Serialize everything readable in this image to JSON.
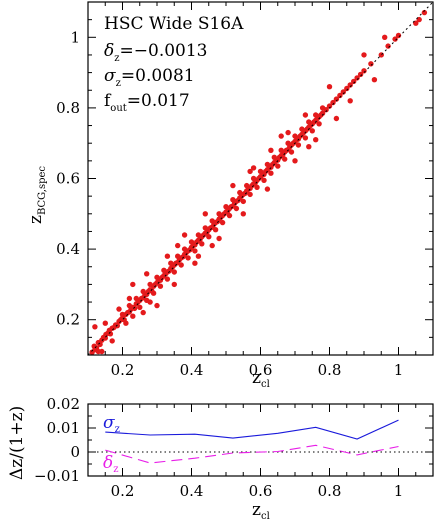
{
  "chart_data": [
    {
      "type": "scatter",
      "id": "main",
      "xlim": [
        0.1,
        1.1
      ],
      "ylim": [
        0.1,
        1.1
      ],
      "xticks": [
        "0.2",
        "0.4",
        "0.6",
        "0.8",
        "1"
      ],
      "yticks": [
        "0.2",
        "0.4",
        "0.6",
        "0.8",
        "1"
      ],
      "xtick_values": [
        0.2,
        0.4,
        0.6,
        0.8,
        1.0
      ],
      "ytick_values": [
        0.2,
        0.4,
        0.6,
        0.8,
        1.0
      ],
      "xlabel_main": "z",
      "xlabel_sub": "cl",
      "ylabel_main": "z",
      "ylabel_sub": "BCG,spec",
      "point_color": "#e41a1c",
      "reference_line": "y = x, dotted",
      "annotations": {
        "survey": "HSC Wide S16A",
        "delta_sym": "δ",
        "delta_sub": "z",
        "delta_val": "=−0.0013",
        "sigma_sym": "σ",
        "sigma_sub": "z",
        "sigma_val": "=0.0081",
        "fout_sym": "f",
        "fout_sub": "out",
        "fout_val": "=0.017"
      },
      "points": [
        [
          0.112,
          0.108
        ],
        [
          0.118,
          0.125
        ],
        [
          0.125,
          0.12
        ],
        [
          0.13,
          0.135
        ],
        [
          0.135,
          0.13
        ],
        [
          0.14,
          0.142
        ],
        [
          0.145,
          0.15
        ],
        [
          0.15,
          0.148
        ],
        [
          0.152,
          0.158
        ],
        [
          0.158,
          0.162
        ],
        [
          0.162,
          0.17
        ],
        [
          0.165,
          0.16
        ],
        [
          0.17,
          0.176
        ],
        [
          0.175,
          0.178
        ],
        [
          0.18,
          0.185
        ],
        [
          0.185,
          0.183
        ],
        [
          0.19,
          0.195
        ],
        [
          0.195,
          0.2
        ],
        [
          0.2,
          0.205
        ],
        [
          0.205,
          0.2
        ],
        [
          0.21,
          0.215
        ],
        [
          0.215,
          0.22
        ],
        [
          0.22,
          0.222
        ],
        [
          0.225,
          0.23
        ],
        [
          0.23,
          0.235
        ],
        [
          0.235,
          0.232
        ],
        [
          0.24,
          0.245
        ],
        [
          0.245,
          0.25
        ],
        [
          0.25,
          0.255
        ],
        [
          0.255,
          0.26
        ],
        [
          0.26,
          0.262
        ],
        [
          0.265,
          0.27
        ],
        [
          0.27,
          0.272
        ],
        [
          0.275,
          0.28
        ],
        [
          0.28,
          0.285
        ],
        [
          0.285,
          0.282
        ],
        [
          0.29,
          0.295
        ],
        [
          0.295,
          0.3
        ],
        [
          0.3,
          0.305
        ],
        [
          0.305,
          0.31
        ],
        [
          0.31,
          0.312
        ],
        [
          0.315,
          0.32
        ],
        [
          0.32,
          0.325
        ],
        [
          0.325,
          0.33
        ],
        [
          0.33,
          0.335
        ],
        [
          0.335,
          0.338
        ],
        [
          0.34,
          0.345
        ],
        [
          0.345,
          0.35
        ],
        [
          0.35,
          0.355
        ],
        [
          0.355,
          0.36
        ],
        [
          0.36,
          0.362
        ],
        [
          0.365,
          0.37
        ],
        [
          0.37,
          0.375
        ],
        [
          0.375,
          0.378
        ],
        [
          0.38,
          0.385
        ],
        [
          0.385,
          0.39
        ],
        [
          0.39,
          0.395
        ],
        [
          0.395,
          0.398
        ],
        [
          0.4,
          0.405
        ],
        [
          0.405,
          0.41
        ],
        [
          0.41,
          0.412
        ],
        [
          0.415,
          0.42
        ],
        [
          0.42,
          0.425
        ],
        [
          0.425,
          0.428
        ],
        [
          0.43,
          0.435
        ],
        [
          0.435,
          0.44
        ],
        [
          0.44,
          0.445
        ],
        [
          0.445,
          0.448
        ],
        [
          0.45,
          0.455
        ],
        [
          0.455,
          0.46
        ],
        [
          0.46,
          0.462
        ],
        [
          0.465,
          0.47
        ],
        [
          0.47,
          0.475
        ],
        [
          0.475,
          0.478
        ],
        [
          0.48,
          0.485
        ],
        [
          0.485,
          0.49
        ],
        [
          0.49,
          0.495
        ],
        [
          0.495,
          0.5
        ],
        [
          0.5,
          0.505
        ],
        [
          0.505,
          0.508
        ],
        [
          0.51,
          0.515
        ],
        [
          0.515,
          0.52
        ],
        [
          0.52,
          0.522
        ],
        [
          0.525,
          0.53
        ],
        [
          0.53,
          0.535
        ],
        [
          0.535,
          0.538
        ],
        [
          0.54,
          0.545
        ],
        [
          0.545,
          0.55
        ],
        [
          0.55,
          0.555
        ],
        [
          0.555,
          0.558
        ],
        [
          0.56,
          0.565
        ],
        [
          0.565,
          0.57
        ],
        [
          0.57,
          0.572
        ],
        [
          0.575,
          0.58
        ],
        [
          0.58,
          0.585
        ],
        [
          0.585,
          0.588
        ],
        [
          0.59,
          0.595
        ],
        [
          0.595,
          0.6
        ],
        [
          0.6,
          0.605
        ],
        [
          0.605,
          0.61
        ],
        [
          0.61,
          0.612
        ],
        [
          0.615,
          0.62
        ],
        [
          0.62,
          0.625
        ],
        [
          0.625,
          0.63
        ],
        [
          0.63,
          0.632
        ],
        [
          0.635,
          0.64
        ],
        [
          0.64,
          0.645
        ],
        [
          0.645,
          0.65
        ],
        [
          0.65,
          0.652
        ],
        [
          0.655,
          0.66
        ],
        [
          0.66,
          0.665
        ],
        [
          0.665,
          0.668
        ],
        [
          0.67,
          0.675
        ],
        [
          0.675,
          0.68
        ],
        [
          0.68,
          0.682
        ],
        [
          0.685,
          0.69
        ],
        [
          0.69,
          0.695
        ],
        [
          0.695,
          0.7
        ],
        [
          0.7,
          0.705
        ],
        [
          0.705,
          0.71
        ],
        [
          0.71,
          0.712
        ],
        [
          0.715,
          0.72
        ],
        [
          0.72,
          0.725
        ],
        [
          0.725,
          0.73
        ],
        [
          0.73,
          0.735
        ],
        [
          0.735,
          0.74
        ],
        [
          0.74,
          0.745
        ],
        [
          0.745,
          0.75
        ],
        [
          0.75,
          0.755
        ],
        [
          0.755,
          0.76
        ],
        [
          0.76,
          0.765
        ],
        [
          0.765,
          0.77
        ],
        [
          0.77,
          0.775
        ],
        [
          0.775,
          0.78
        ],
        [
          0.78,
          0.785
        ],
        [
          0.79,
          0.795
        ],
        [
          0.8,
          0.805
        ],
        [
          0.81,
          0.815
        ],
        [
          0.82,
          0.825
        ],
        [
          0.83,
          0.835
        ],
        [
          0.84,
          0.845
        ],
        [
          0.85,
          0.855
        ],
        [
          0.86,
          0.865
        ],
        [
          0.87,
          0.875
        ],
        [
          0.88,
          0.885
        ],
        [
          0.89,
          0.895
        ],
        [
          0.9,
          0.905
        ],
        [
          0.92,
          0.925
        ],
        [
          0.95,
          0.95
        ],
        [
          0.97,
          0.975
        ],
        [
          0.99,
          0.995
        ],
        [
          1.0,
          1.005
        ],
        [
          1.05,
          1.04
        ],
        [
          1.06,
          1.05
        ],
        [
          1.075,
          1.07
        ],
        [
          0.2,
          0.215
        ],
        [
          0.22,
          0.24
        ],
        [
          0.24,
          0.26
        ],
        [
          0.26,
          0.28
        ],
        [
          0.28,
          0.3
        ],
        [
          0.3,
          0.32
        ],
        [
          0.32,
          0.34
        ],
        [
          0.34,
          0.36
        ],
        [
          0.36,
          0.38
        ],
        [
          0.38,
          0.4
        ],
        [
          0.4,
          0.42
        ],
        [
          0.42,
          0.44
        ],
        [
          0.44,
          0.46
        ],
        [
          0.46,
          0.48
        ],
        [
          0.48,
          0.5
        ],
        [
          0.5,
          0.52
        ],
        [
          0.52,
          0.54
        ],
        [
          0.54,
          0.56
        ],
        [
          0.56,
          0.58
        ],
        [
          0.58,
          0.6
        ],
        [
          0.6,
          0.62
        ],
        [
          0.62,
          0.64
        ],
        [
          0.64,
          0.66
        ],
        [
          0.66,
          0.68
        ],
        [
          0.68,
          0.7
        ],
        [
          0.7,
          0.72
        ],
        [
          0.72,
          0.74
        ],
        [
          0.74,
          0.76
        ],
        [
          0.76,
          0.78
        ],
        [
          0.78,
          0.8
        ],
        [
          0.21,
          0.19
        ],
        [
          0.23,
          0.21
        ],
        [
          0.25,
          0.235
        ],
        [
          0.27,
          0.255
        ],
        [
          0.29,
          0.275
        ],
        [
          0.31,
          0.295
        ],
        [
          0.33,
          0.315
        ],
        [
          0.35,
          0.335
        ],
        [
          0.37,
          0.355
        ],
        [
          0.39,
          0.375
        ],
        [
          0.41,
          0.395
        ],
        [
          0.43,
          0.415
        ],
        [
          0.45,
          0.435
        ],
        [
          0.47,
          0.455
        ],
        [
          0.49,
          0.475
        ],
        [
          0.51,
          0.495
        ],
        [
          0.53,
          0.515
        ],
        [
          0.55,
          0.535
        ],
        [
          0.57,
          0.555
        ],
        [
          0.59,
          0.575
        ],
        [
          0.61,
          0.595
        ],
        [
          0.63,
          0.615
        ],
        [
          0.65,
          0.635
        ],
        [
          0.67,
          0.655
        ],
        [
          0.69,
          0.675
        ],
        [
          0.71,
          0.695
        ],
        [
          0.73,
          0.715
        ],
        [
          0.75,
          0.735
        ],
        [
          0.77,
          0.755
        ],
        [
          0.12,
          0.18
        ],
        [
          0.15,
          0.19
        ],
        [
          0.17,
          0.14
        ],
        [
          0.19,
          0.23
        ],
        [
          0.23,
          0.3
        ],
        [
          0.26,
          0.22
        ],
        [
          0.3,
          0.24
        ],
        [
          0.33,
          0.38
        ],
        [
          0.35,
          0.3
        ],
        [
          0.38,
          0.44
        ],
        [
          0.42,
          0.38
        ],
        [
          0.44,
          0.5
        ],
        [
          0.48,
          0.43
        ],
        [
          0.52,
          0.58
        ],
        [
          0.55,
          0.5
        ],
        [
          0.58,
          0.63
        ],
        [
          0.62,
          0.57
        ],
        [
          0.66,
          0.72
        ],
        [
          0.7,
          0.65
        ],
        [
          0.73,
          0.78
        ],
        [
          0.76,
          0.71
        ],
        [
          0.8,
          0.86
        ],
        [
          0.82,
          0.77
        ],
        [
          0.86,
          0.82
        ],
        [
          0.9,
          0.95
        ],
        [
          0.93,
          0.88
        ],
        [
          0.96,
          1.0
        ],
        [
          0.27,
          0.33
        ],
        [
          0.41,
          0.36
        ],
        [
          0.57,
          0.62
        ],
        [
          0.68,
          0.73
        ],
        [
          0.74,
          0.69
        ],
        [
          0.63,
          0.68
        ],
        [
          0.46,
          0.41
        ],
        [
          0.36,
          0.41
        ],
        [
          0.28,
          0.25
        ],
        [
          0.22,
          0.26
        ],
        [
          0.14,
          0.11
        ],
        [
          0.12,
          0.115
        ],
        [
          0.13,
          0.11
        ]
      ]
    },
    {
      "type": "line",
      "id": "residuals",
      "xlim": [
        0.1,
        1.1
      ],
      "ylim": [
        -0.01,
        0.02
      ],
      "xticks": [
        "0.2",
        "0.4",
        "0.6",
        "0.8",
        "1"
      ],
      "yticks": [
        "−0.01",
        "0",
        "0.01",
        "0.02"
      ],
      "xtick_values": [
        0.2,
        0.4,
        0.6,
        0.8,
        1.0
      ],
      "ytick_values": [
        -0.01,
        0,
        0.01,
        0.02
      ],
      "xlabel_main": "z",
      "xlabel_sub": "cl",
      "ylabel": "Δz/(1+z)",
      "series": [
        {
          "name": "σ",
          "name_sub": "z",
          "color": "#1a1adb",
          "style": "solid",
          "x": [
            0.15,
            0.28,
            0.41,
            0.52,
            0.65,
            0.76,
            0.88,
            1.0
          ],
          "y": [
            0.0083,
            0.0071,
            0.0074,
            0.0058,
            0.0078,
            0.0103,
            0.0054,
            0.0133
          ]
        },
        {
          "name": "δ",
          "name_sub": "z",
          "color": "#e81ee8",
          "style": "dashed",
          "x": [
            0.15,
            0.28,
            0.41,
            0.52,
            0.65,
            0.76,
            0.88,
            1.0
          ],
          "y": [
            0.0008,
            -0.0046,
            -0.0026,
            -0.0004,
            0.0002,
            0.0028,
            -0.0012,
            0.0023
          ]
        }
      ]
    }
  ]
}
